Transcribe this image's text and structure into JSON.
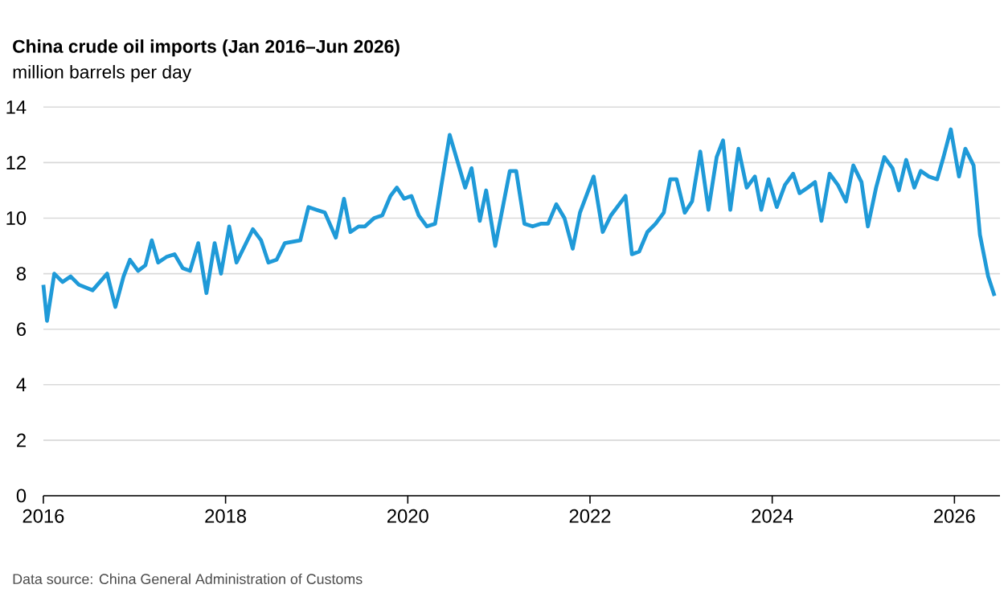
{
  "chart_data": {
    "type": "line",
    "title": "China crude oil imports (Jan 2016–Jun 2026)",
    "subtitle": "million barrels per day",
    "x": [
      2016.0,
      2016.04,
      2016.12,
      2016.21,
      2016.3,
      2016.39,
      2016.54,
      2016.7,
      2016.79,
      2016.88,
      2016.95,
      2017.04,
      2017.12,
      2017.19,
      2017.26,
      2017.35,
      2017.44,
      2017.53,
      2017.61,
      2017.7,
      2017.79,
      2017.88,
      2017.95,
      2018.04,
      2018.12,
      2018.21,
      2018.3,
      2018.39,
      2018.47,
      2018.56,
      2018.65,
      2018.82,
      2018.91,
      2019.0,
      2019.09,
      2019.21,
      2019.3,
      2019.37,
      2019.46,
      2019.53,
      2019.63,
      2019.72,
      2019.81,
      2019.88,
      2019.96,
      2020.04,
      2020.12,
      2020.21,
      2020.3,
      2020.46,
      2020.63,
      2020.7,
      2020.79,
      2020.86,
      2020.96,
      2021.12,
      2021.19,
      2021.28,
      2021.37,
      2021.46,
      2021.54,
      2021.63,
      2021.72,
      2021.81,
      2021.89,
      2022.04,
      2022.14,
      2022.23,
      2022.39,
      2022.46,
      2022.54,
      2022.63,
      2022.72,
      2022.81,
      2022.88,
      2022.95,
      2023.04,
      2023.12,
      2023.21,
      2023.3,
      2023.39,
      2023.46,
      2023.54,
      2023.63,
      2023.72,
      2023.81,
      2023.88,
      2023.96,
      2024.05,
      2024.14,
      2024.23,
      2024.3,
      2024.39,
      2024.47,
      2024.54,
      2024.63,
      2024.72,
      2024.81,
      2024.89,
      2024.98,
      2025.05,
      2025.14,
      2025.23,
      2025.32,
      2025.39,
      2025.47,
      2025.56,
      2025.63,
      2025.72,
      2025.81,
      2025.88,
      2025.96,
      2026.05,
      2026.12,
      2026.21,
      2026.28,
      2026.37,
      2026.44
    ],
    "series": [
      {
        "color": "#1f9ad8",
        "values": [
          7.6,
          6.3,
          8.0,
          7.7,
          7.9,
          7.6,
          7.4,
          8.0,
          6.8,
          7.9,
          8.5,
          8.1,
          8.3,
          9.2,
          8.4,
          8.6,
          8.7,
          8.2,
          8.1,
          9.1,
          7.3,
          9.1,
          8.0,
          9.7,
          8.4,
          9.0,
          9.6,
          9.2,
          8.4,
          8.5,
          9.1,
          9.2,
          10.4,
          10.3,
          10.2,
          9.3,
          10.7,
          9.5,
          9.7,
          9.7,
          10.0,
          10.1,
          10.8,
          11.1,
          10.7,
          10.8,
          10.1,
          9.7,
          9.8,
          13.0,
          11.1,
          11.8,
          9.9,
          11.0,
          9.0,
          11.7,
          11.7,
          9.8,
          9.7,
          9.8,
          9.8,
          10.5,
          10.0,
          8.9,
          10.2,
          11.5,
          9.5,
          10.1,
          10.8,
          8.7,
          8.8,
          9.5,
          9.8,
          10.2,
          11.4,
          11.4,
          10.2,
          10.6,
          12.4,
          10.3,
          12.2,
          12.8,
          10.3,
          12.5,
          11.1,
          11.5,
          10.3,
          11.4,
          10.4,
          11.2,
          11.6,
          10.9,
          11.1,
          11.3,
          9.9,
          11.6,
          11.2,
          10.6,
          11.9,
          11.3,
          9.7,
          11.1,
          12.2,
          11.8,
          11.0,
          12.1,
          11.1,
          11.7,
          11.5,
          11.4,
          12.2,
          13.2,
          11.5,
          12.5,
          11.9,
          9.4,
          7.9,
          7.2
        ]
      }
    ],
    "xlim": [
      2016,
      2026.5
    ],
    "xticks": [
      2016,
      2018,
      2020,
      2022,
      2024,
      2026
    ],
    "ylim": [
      0,
      14
    ],
    "yticks": [
      0,
      2,
      4,
      6,
      8,
      10,
      12,
      14
    ],
    "grid": "y",
    "annotations": [
      "Data source: China General Administration of Customs"
    ]
  }
}
